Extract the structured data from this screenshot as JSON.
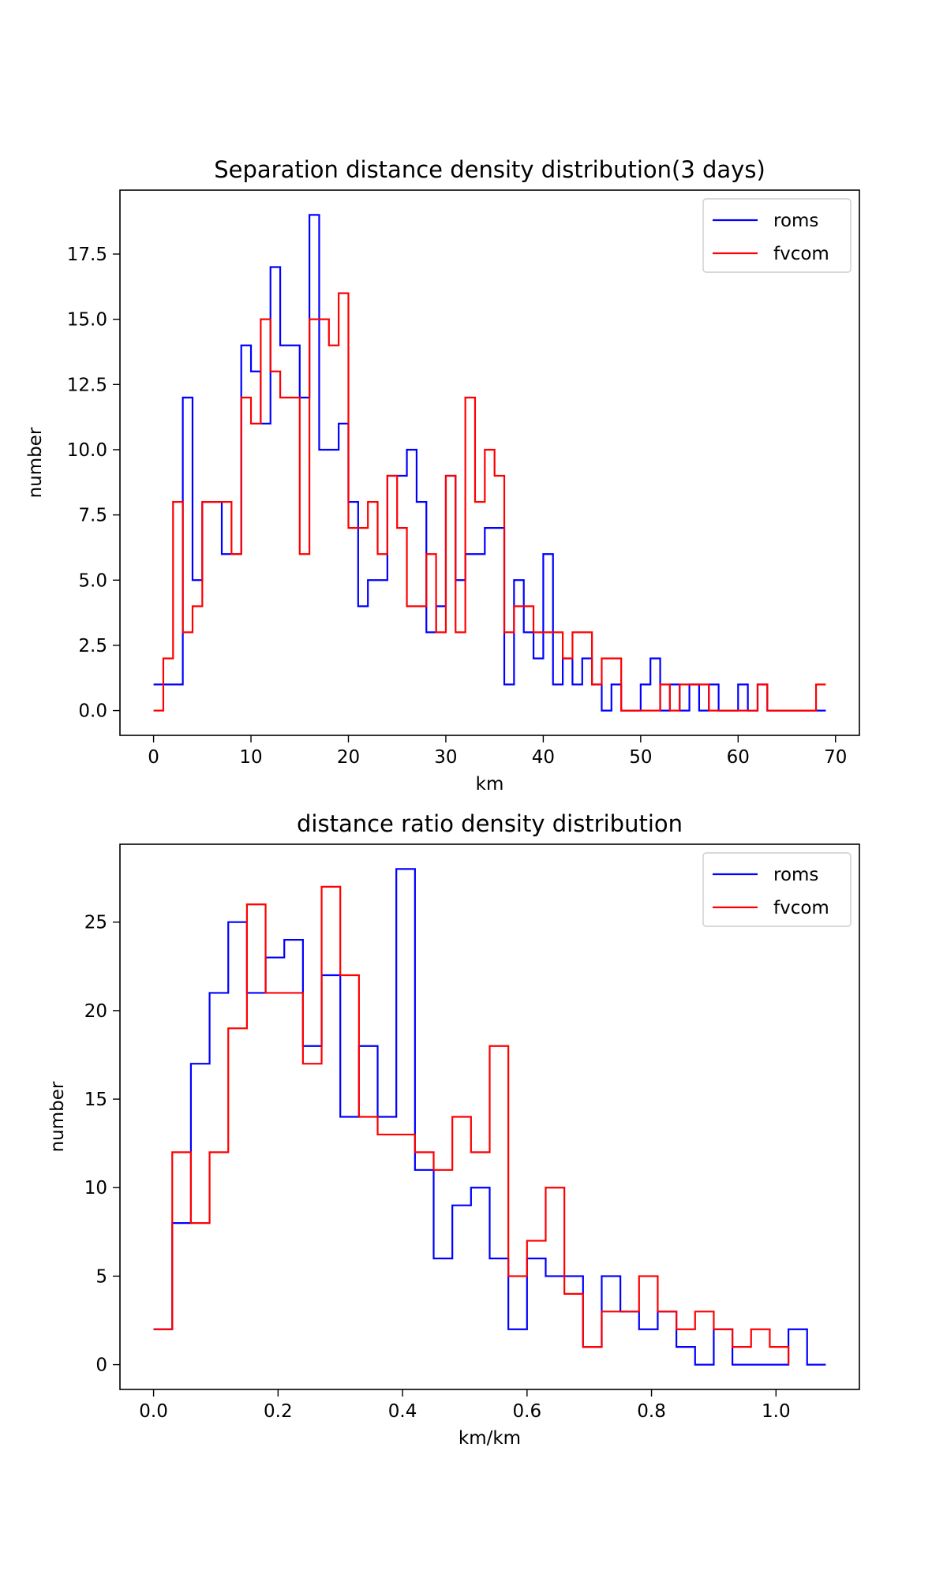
{
  "colors": {
    "roms": "#0000ff",
    "fvcom": "#ff0000",
    "axes": "#000000",
    "legend_border": "#cccccc"
  },
  "chart_data": [
    {
      "type": "step",
      "title": "Separation distance density distribution(3 days)",
      "xlabel": "km",
      "ylabel": "number",
      "xlim": [
        -3.45,
        72.45
      ],
      "ylim": [
        -0.95,
        19.95
      ],
      "xticks": [
        0,
        10,
        20,
        30,
        40,
        50,
        60,
        70
      ],
      "xtick_labels": [
        "0",
        "10",
        "20",
        "30",
        "40",
        "50",
        "60",
        "70"
      ],
      "yticks": [
        0,
        2.5,
        5,
        7.5,
        10,
        12.5,
        15,
        17.5
      ],
      "ytick_labels": [
        "0.0",
        "2.5",
        "5.0",
        "7.5",
        "10.0",
        "12.5",
        "15.0",
        "17.5"
      ],
      "legend": {
        "location": "upper right",
        "entries": [
          "roms",
          "fvcom"
        ]
      },
      "series": [
        {
          "name": "roms",
          "color_key": "roms",
          "x": [
            0,
            3,
            4,
            5,
            7,
            9,
            10,
            11,
            12,
            13,
            15,
            16,
            17,
            19,
            20,
            21,
            22,
            24,
            25,
            26,
            27,
            28,
            29,
            30,
            31,
            32,
            34,
            35,
            36,
            37,
            38,
            39,
            40,
            41,
            42,
            43,
            44,
            45,
            46,
            47,
            48,
            50,
            51,
            52,
            53,
            54,
            55,
            56,
            57,
            58,
            60,
            61,
            62,
            63,
            64,
            65,
            66,
            67,
            68,
            69
          ],
          "y": [
            1,
            12,
            5,
            8,
            6,
            14,
            13,
            11,
            17,
            14,
            12,
            19,
            10,
            11,
            8,
            4,
            5,
            9,
            9,
            10,
            8,
            3,
            4,
            9,
            5,
            6,
            7,
            7,
            1,
            5,
            3,
            2,
            6,
            1,
            2,
            1,
            2,
            1,
            0,
            1,
            0,
            1,
            2,
            0,
            1,
            0,
            1,
            0,
            1,
            0,
            1,
            0,
            1,
            0,
            0,
            0,
            0,
            0,
            0,
            0
          ]
        },
        {
          "name": "fvcom",
          "color_key": "fvcom",
          "x": [
            0,
            1,
            2,
            3,
            4,
            5,
            6,
            7,
            8,
            9,
            10,
            11,
            12,
            13,
            14,
            15,
            16,
            17,
            18,
            19,
            20,
            21,
            22,
            23,
            24,
            25,
            26,
            27,
            28,
            29,
            30,
            31,
            32,
            33,
            34,
            35,
            36,
            37,
            38,
            39,
            40,
            41,
            42,
            43,
            44,
            45,
            46,
            47,
            48,
            49,
            50,
            51,
            52,
            53,
            54,
            55,
            56,
            57,
            58,
            59,
            60,
            61,
            62,
            63,
            64,
            65,
            66,
            67,
            68,
            69
          ],
          "y": [
            0,
            2,
            8,
            3,
            4,
            8,
            8,
            8,
            6,
            12,
            11,
            15,
            13,
            12,
            12,
            6,
            15,
            15,
            14,
            16,
            7,
            7,
            8,
            6,
            9,
            7,
            4,
            4,
            6,
            3,
            9,
            3,
            12,
            8,
            10,
            9,
            3,
            4,
            4,
            3,
            3,
            3,
            2,
            3,
            3,
            1,
            2,
            2,
            0,
            0,
            0,
            0,
            1,
            0,
            1,
            1,
            1,
            0,
            0,
            0,
            0,
            0,
            1,
            0,
            0,
            0,
            0,
            0,
            1,
            1
          ]
        }
      ]
    },
    {
      "type": "step",
      "title": "distance ratio density distribution",
      "xlabel": "km/km",
      "ylabel": "number",
      "xlim": [
        -0.054,
        1.134
      ],
      "ylim": [
        -1.4,
        29.4
      ],
      "xticks": [
        0,
        0.2,
        0.4,
        0.6,
        0.8,
        1.0
      ],
      "xtick_labels": [
        "0.0",
        "0.2",
        "0.4",
        "0.6",
        "0.8",
        "1.0"
      ],
      "yticks": [
        0,
        5,
        10,
        15,
        20,
        25
      ],
      "ytick_labels": [
        "0",
        "5",
        "10",
        "15",
        "20",
        "25"
      ],
      "legend": {
        "location": "upper right",
        "entries": [
          "roms",
          "fvcom"
        ]
      },
      "series": [
        {
          "name": "roms",
          "color_key": "roms",
          "x": [
            0,
            0.03,
            0.06,
            0.09,
            0.12,
            0.15,
            0.18,
            0.21,
            0.24,
            0.27,
            0.3,
            0.33,
            0.36,
            0.39,
            0.42,
            0.45,
            0.48,
            0.51,
            0.54,
            0.57,
            0.6,
            0.63,
            0.66,
            0.69,
            0.72,
            0.75,
            0.78,
            0.81,
            0.84,
            0.87,
            0.9,
            0.93,
            0.96,
            0.99,
            1.02,
            1.05,
            1.08
          ],
          "y": [
            2,
            8,
            17,
            21,
            25,
            21,
            23,
            24,
            18,
            22,
            14,
            18,
            14,
            28,
            11,
            6,
            9,
            10,
            6,
            2,
            6,
            5,
            5,
            1,
            5,
            3,
            2,
            3,
            1,
            0,
            2,
            0,
            0,
            0,
            2,
            0,
            0
          ]
        },
        {
          "name": "fvcom",
          "color_key": "fvcom",
          "x": [
            0,
            0.03,
            0.06,
            0.09,
            0.12,
            0.15,
            0.18,
            0.21,
            0.24,
            0.27,
            0.3,
            0.33,
            0.36,
            0.39,
            0.42,
            0.45,
            0.48,
            0.51,
            0.54,
            0.57,
            0.6,
            0.63,
            0.66,
            0.69,
            0.72,
            0.75,
            0.78,
            0.81,
            0.84,
            0.87,
            0.9,
            0.93,
            0.96,
            0.99,
            1.02
          ],
          "y": [
            2,
            12,
            8,
            12,
            19,
            26,
            21,
            21,
            17,
            27,
            22,
            14,
            13,
            13,
            12,
            11,
            14,
            12,
            18,
            5,
            7,
            10,
            4,
            1,
            3,
            3,
            5,
            3,
            2,
            3,
            2,
            1,
            2,
            1,
            0
          ]
        }
      ]
    }
  ]
}
